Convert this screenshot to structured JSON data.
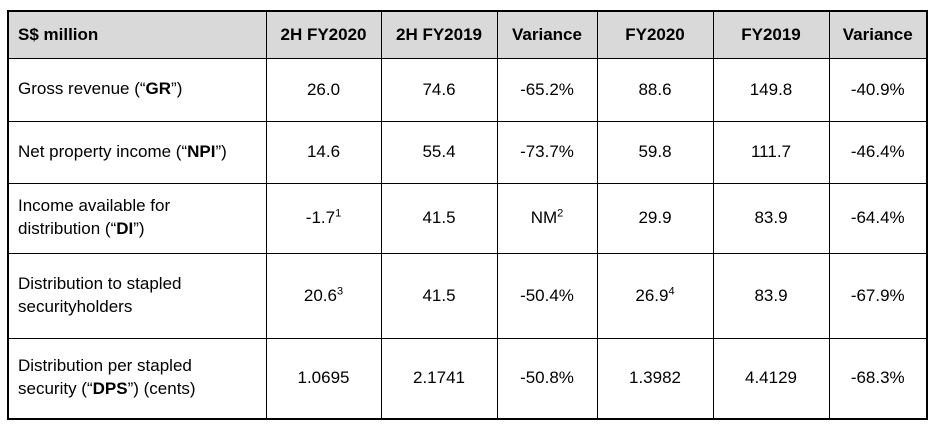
{
  "style": {
    "header_bg": "#d9d9d9",
    "border_color": "#000000",
    "text_color": "#000000"
  },
  "table": {
    "columns": [
      {
        "label": "S$ million"
      },
      {
        "label": "2H FY2020"
      },
      {
        "label": "2H FY2019"
      },
      {
        "label": "Variance"
      },
      {
        "label": "FY2020"
      },
      {
        "label": "FY2019"
      },
      {
        "label": "Variance"
      }
    ],
    "rows": [
      {
        "label_parts": [
          {
            "t": "Gross revenue (“"
          },
          {
            "t": "GR",
            "b": true
          },
          {
            "t": "”)"
          }
        ],
        "cells": [
          {
            "v": "26.0"
          },
          {
            "v": "74.6"
          },
          {
            "v": "-65.2%"
          },
          {
            "v": "88.6"
          },
          {
            "v": "149.8"
          },
          {
            "v": "-40.9%"
          }
        ]
      },
      {
        "label_parts": [
          {
            "t": "Net property income (“"
          },
          {
            "t": "NPI",
            "b": true
          },
          {
            "t": "”)"
          }
        ],
        "cells": [
          {
            "v": "14.6"
          },
          {
            "v": "55.4"
          },
          {
            "v": "-73.7%"
          },
          {
            "v": "59.8"
          },
          {
            "v": "111.7"
          },
          {
            "v": "-46.4%"
          }
        ]
      },
      {
        "label_parts": [
          {
            "t": "Income available for distribution (“"
          },
          {
            "t": "DI",
            "b": true
          },
          {
            "t": "”)"
          }
        ],
        "cells": [
          {
            "v": "-1.7",
            "sup": "1"
          },
          {
            "v": "41.5"
          },
          {
            "v": "NM",
            "sup": "2"
          },
          {
            "v": "29.9"
          },
          {
            "v": "83.9"
          },
          {
            "v": "-64.4%"
          }
        ]
      },
      {
        "label_parts": [
          {
            "t": "Distribution to stapled securityholders"
          }
        ],
        "cells": [
          {
            "v": "20.6",
            "sup": "3"
          },
          {
            "v": "41.5"
          },
          {
            "v": "-50.4%"
          },
          {
            "v": "26.9",
            "sup": "4"
          },
          {
            "v": "83.9"
          },
          {
            "v": "-67.9%"
          }
        ]
      },
      {
        "label_parts": [
          {
            "t": "Distribution per stapled security (“"
          },
          {
            "t": "DPS",
            "b": true
          },
          {
            "t": "”) (cents)"
          }
        ],
        "cells": [
          {
            "v": "1.0695"
          },
          {
            "v": "2.1741"
          },
          {
            "v": "-50.8%"
          },
          {
            "v": "1.3982"
          },
          {
            "v": "4.4129"
          },
          {
            "v": "-68.3%"
          }
        ]
      }
    ]
  }
}
